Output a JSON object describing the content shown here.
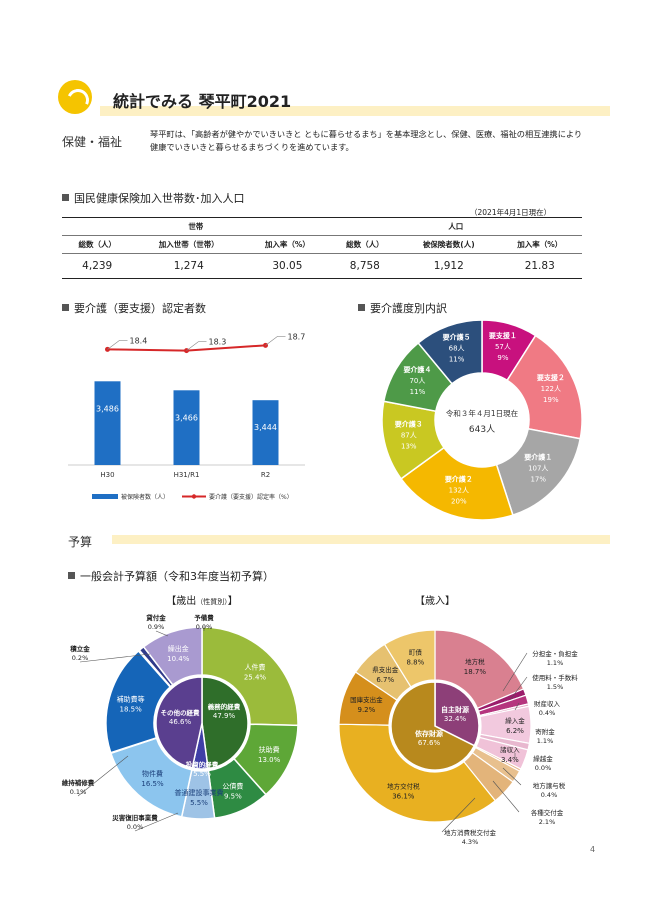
{
  "header": {
    "title": "統計でみる 琴平町2021"
  },
  "section_health": {
    "label": "保健・福祉",
    "intro": "琴平町は、「高齢者が健やかでいきいきと ともに暮らせるまち」を基本理念とし、保健、医療、福祉の相互連携により健康でいきいきと暮らせるまちづくりを進めています。"
  },
  "kokuho": {
    "heading": "国民健康保険加入世帯数･加入人口",
    "date": "（2021年4月1日現在）",
    "group_setai": "世帯",
    "group_jinko": "人口",
    "headers": [
      "総数（人）",
      "加入世帯（世帯）",
      "加入率（%）",
      "総数（人）",
      "被保険者数(人)",
      "加入率（%）"
    ],
    "values": [
      "4,239",
      "1,274",
      "30.05",
      "8,758",
      "1,912",
      "21.83"
    ]
  },
  "kaigo_heading": "要介護（要支援）認定者数",
  "naiyaku_heading": "要介護度別内訳",
  "budget_section_label": "予算",
  "budget_heading": "一般会計予算額（令和3年度当初予算）",
  "chart_data": [
    {
      "type": "bar",
      "categories": [
        "H30",
        "H31/R1",
        "R2"
      ],
      "series": [
        {
          "name": "被保険者数（人）",
          "type": "bar",
          "color": "#1f6fc4",
          "values": [
            3486,
            3466,
            3444
          ],
          "labels": [
            "3,486",
            "3,466",
            "3,444"
          ]
        },
        {
          "name": "要介護（要支援）認定率（%）",
          "type": "line",
          "color": "#d62728",
          "values": [
            18.4,
            18.3,
            18.7
          ],
          "labels": [
            "18.4",
            "18.3",
            "18.7"
          ]
        }
      ]
    },
    {
      "type": "pie",
      "center_label": [
        "令和３年４月1日現在",
        "643人"
      ],
      "slices": [
        {
          "name": "要支援１",
          "count": "57人",
          "pct": 9,
          "color": "#c8117e"
        },
        {
          "name": "要支援２",
          "count": "122人",
          "pct": 19,
          "color": "#f07a84"
        },
        {
          "name": "要介護１",
          "count": "107人",
          "pct": 17,
          "color": "#a6a6a6"
        },
        {
          "name": "要介護２",
          "count": "132人",
          "pct": 20,
          "color": "#f5b800"
        },
        {
          "name": "要介護３",
          "count": "87人",
          "pct": 13,
          "color": "#c9c822"
        },
        {
          "name": "要介護４",
          "count": "70人",
          "pct": 11,
          "color": "#4e9a48"
        },
        {
          "name": "要介護５",
          "count": "68人",
          "pct": 11,
          "color": "#2c4f7c"
        }
      ]
    },
    {
      "type": "pie",
      "title": "【歳出",
      "title_small": "（性質別）",
      "title_end": "】",
      "outer": [
        {
          "name": "人件費",
          "pct": "25.4%",
          "value": 25.4,
          "color": "#9bbb3b"
        },
        {
          "name": "扶助費",
          "pct": "13.0%",
          "value": 13.0,
          "color": "#5ea737"
        },
        {
          "name": "公債費",
          "pct": "9.5%",
          "value": 9.5,
          "color": "#2e8b43"
        },
        {
          "name": "普通建設事業費",
          "pct": "5.5%",
          "value": 5.5,
          "color": "#9ec3e6"
        },
        {
          "name": "災害復旧事業費",
          "pct": "0.0%",
          "value": 0.0,
          "color": "#9ec3e6"
        },
        {
          "name": "物件費",
          "pct": "16.5%",
          "value": 16.5,
          "color": "#8cc5ee"
        },
        {
          "name": "維持補修費",
          "pct": "0.1%",
          "value": 0.1,
          "color": "#8cc5ee"
        },
        {
          "name": "補助費等",
          "pct": "18.5%",
          "value": 18.5,
          "color": "#1565b8"
        },
        {
          "name": "積立金",
          "pct": "0.2%",
          "value": 0.2,
          "color": "#303a8a"
        },
        {
          "name": "貸付金",
          "pct": "0.9%",
          "value": 0.9,
          "color": "#303a8a"
        },
        {
          "name": "繰出金",
          "pct": "10.4%",
          "value": 10.4,
          "color": "#a99ad0"
        },
        {
          "name": "予備費",
          "pct": "0.0%",
          "value": 0.0,
          "color": "#a99ad0"
        }
      ],
      "inner": [
        {
          "name": "義務的経費",
          "pct": "47.9%",
          "value": 47.9,
          "color": "#2f6e2a"
        },
        {
          "name": "投資的経費",
          "pct": "5.5%",
          "value": 5.5,
          "color": "#3f3fa6"
        },
        {
          "name": "その他の経費",
          "pct": "46.6%",
          "value": 46.6,
          "color": "#5a3f8f"
        }
      ]
    },
    {
      "type": "pie",
      "title": "【歳入】",
      "outer": [
        {
          "name": "地方税",
          "pct": "18.7%",
          "value": 18.7,
          "color": "#d98090"
        },
        {
          "name": "分担金・負担金",
          "pct": "1.1%",
          "value": 1.1,
          "color": "#9b1d6b"
        },
        {
          "name": "使用料・手数料",
          "pct": "1.5%",
          "value": 1.5,
          "color": "#b5357e"
        },
        {
          "name": "財産収入",
          "pct": "0.4%",
          "value": 0.4,
          "color": "#e3a9c6"
        },
        {
          "name": "繰入金",
          "pct": "6.2%",
          "value": 6.2,
          "color": "#f2c9de"
        },
        {
          "name": "寄附金",
          "pct": "1.1%",
          "value": 1.1,
          "color": "#e8b8cf"
        },
        {
          "name": "諸収入",
          "pct": "3.4%",
          "value": 3.4,
          "color": "#f0c2d8"
        },
        {
          "name": "繰越金",
          "pct": "0.0%",
          "value": 0.0,
          "color": "#f0c2d8"
        },
        {
          "name": "地方譲与税",
          "pct": "0.4%",
          "value": 0.4,
          "color": "#e6b38a"
        },
        {
          "name": "各種交付金",
          "pct": "2.1%",
          "value": 2.1,
          "color": "#e8c08e"
        },
        {
          "name": "地方消費税交付金",
          "pct": "4.3%",
          "value": 4.3,
          "color": "#e3b47a"
        },
        {
          "name": "地方交付税",
          "pct": "36.1%",
          "value": 36.1,
          "color": "#e8b021"
        },
        {
          "name": "国庫支出金",
          "pct": "9.2%",
          "value": 9.2,
          "color": "#d58f1c"
        },
        {
          "name": "県支出金",
          "pct": "6.7%",
          "value": 6.7,
          "color": "#e6c170"
        },
        {
          "name": "町債",
          "pct": "8.8%",
          "value": 8.8,
          "color": "#edc66a"
        }
      ],
      "inner": [
        {
          "name": "自主財源",
          "pct": "32.4%",
          "value": 32.4,
          "color": "#8d3f78"
        },
        {
          "name": "依存財源",
          "pct": "67.6%",
          "value": 67.6,
          "color": "#b8891d"
        }
      ]
    }
  ],
  "page_number": "4"
}
